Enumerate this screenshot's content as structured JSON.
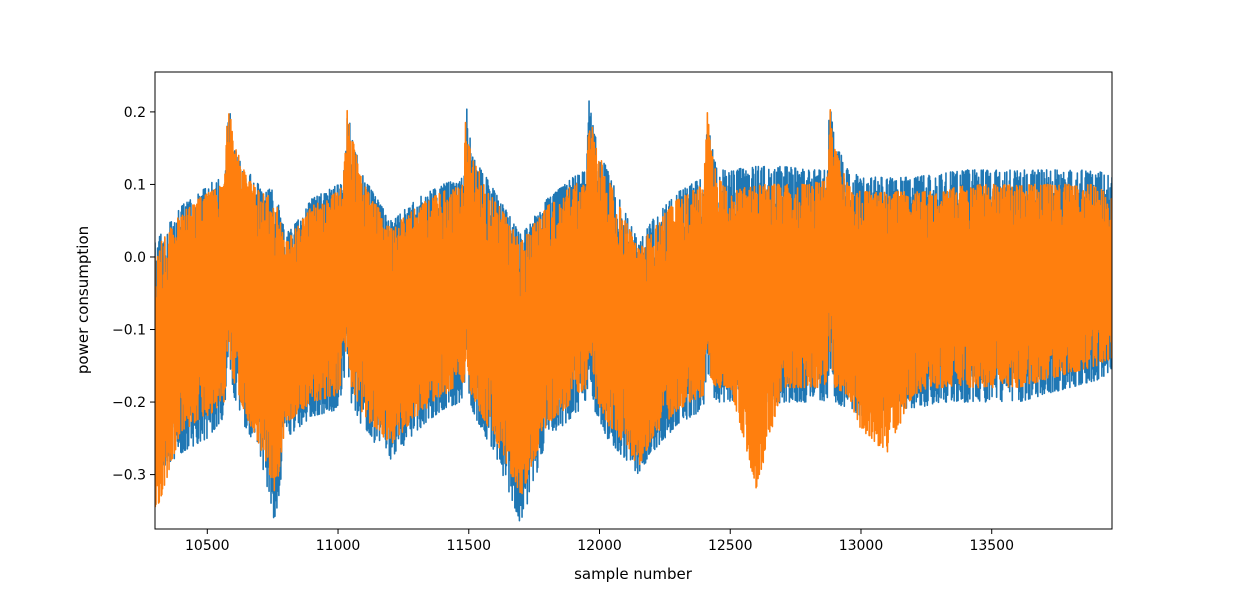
{
  "chart_data": {
    "type": "line",
    "title": "",
    "xlabel": "sample number",
    "ylabel": "power consumption",
    "xlim": [
      10300,
      13960
    ],
    "ylim": [
      -0.375,
      0.255
    ],
    "xticks": [
      10500,
      11000,
      11500,
      12000,
      12500,
      13000,
      13500
    ],
    "xtick_labels": [
      "10500",
      "11000",
      "11500",
      "12000",
      "12500",
      "13000",
      "13500"
    ],
    "yticks": [
      0.2,
      0.1,
      0.0,
      -0.1,
      -0.2,
      -0.3
    ],
    "ytick_labels": [
      "0.2",
      "0.1",
      "0.0",
      "−0.1",
      "−0.2",
      "−0.3"
    ],
    "grid": false,
    "legend": "none",
    "series": [
      {
        "color": "#1f77b4",
        "envelope": {
          "x": [
            10300,
            10400,
            10500,
            10565,
            10580,
            10600,
            10650,
            10700,
            10760,
            10800,
            10900,
            11000,
            11020,
            11035,
            11050,
            11100,
            11200,
            11300,
            11400,
            11480,
            11490,
            11500,
            11550,
            11600,
            11700,
            11800,
            11900,
            11950,
            11960,
            11980,
            12030,
            12100,
            12150,
            12200,
            12300,
            12400,
            12410,
            12425,
            12450,
            12500,
            12600,
            12700,
            12800,
            12870,
            12880,
            12900,
            12950,
            13000,
            13100,
            13200,
            13300,
            13400,
            13500,
            13600,
            13700,
            13800,
            13900,
            13960
          ],
          "upper": [
            0.02,
            0.07,
            0.1,
            0.11,
            0.22,
            0.16,
            0.12,
            0.1,
            0.09,
            0.03,
            0.08,
            0.1,
            0.1,
            0.215,
            0.17,
            0.11,
            0.05,
            0.08,
            0.1,
            0.11,
            0.215,
            0.17,
            0.12,
            0.09,
            0.03,
            0.08,
            0.11,
            0.12,
            0.215,
            0.17,
            0.12,
            0.06,
            0.02,
            0.05,
            0.09,
            0.11,
            0.215,
            0.16,
            0.12,
            0.12,
            0.125,
            0.125,
            0.12,
            0.12,
            0.213,
            0.16,
            0.12,
            0.11,
            0.11,
            0.11,
            0.115,
            0.12,
            0.12,
            0.12,
            0.12,
            0.12,
            0.12,
            0.11
          ],
          "lower": [
            -0.3,
            -0.27,
            -0.25,
            -0.22,
            -0.13,
            -0.19,
            -0.24,
            -0.27,
            -0.37,
            -0.25,
            -0.22,
            -0.21,
            -0.18,
            -0.14,
            -0.2,
            -0.24,
            -0.28,
            -0.24,
            -0.21,
            -0.2,
            -0.15,
            -0.2,
            -0.24,
            -0.27,
            -0.37,
            -0.25,
            -0.22,
            -0.2,
            -0.15,
            -0.21,
            -0.25,
            -0.28,
            -0.3,
            -0.27,
            -0.23,
            -0.21,
            -0.15,
            -0.19,
            -0.2,
            -0.2,
            -0.21,
            -0.2,
            -0.2,
            -0.2,
            -0.15,
            -0.2,
            -0.21,
            -0.22,
            -0.21,
            -0.21,
            -0.2,
            -0.2,
            -0.2,
            -0.2,
            -0.19,
            -0.18,
            -0.17,
            -0.16
          ]
        }
      },
      {
        "color": "#ff7f0e",
        "envelope": {
          "x": [
            10300,
            10400,
            10500,
            10565,
            10580,
            10600,
            10650,
            10700,
            10760,
            10800,
            10900,
            11000,
            11020,
            11035,
            11050,
            11100,
            11200,
            11300,
            11400,
            11480,
            11490,
            11500,
            11550,
            11600,
            11700,
            11800,
            11900,
            11950,
            11960,
            11980,
            12030,
            12100,
            12150,
            12200,
            12300,
            12400,
            12410,
            12425,
            12450,
            12500,
            12600,
            12700,
            12800,
            12870,
            12880,
            12900,
            12950,
            13000,
            13100,
            13200,
            13300,
            13400,
            13500,
            13600,
            13700,
            13800,
            13900,
            13960
          ],
          "upper": [
            0.01,
            0.06,
            0.09,
            0.1,
            0.22,
            0.16,
            0.11,
            0.09,
            0.08,
            0.02,
            0.07,
            0.09,
            0.1,
            0.215,
            0.17,
            0.1,
            0.04,
            0.07,
            0.09,
            0.1,
            0.215,
            0.16,
            0.11,
            0.08,
            0.02,
            0.07,
            0.1,
            0.11,
            0.215,
            0.16,
            0.11,
            0.05,
            0.01,
            0.04,
            0.08,
            0.1,
            0.215,
            0.15,
            0.11,
            0.09,
            0.1,
            0.1,
            0.1,
            0.11,
            0.213,
            0.15,
            0.1,
            0.09,
            0.09,
            0.09,
            0.09,
            0.1,
            0.1,
            0.1,
            0.1,
            0.1,
            0.1,
            0.08
          ],
          "lower": [
            -0.36,
            -0.24,
            -0.22,
            -0.2,
            -0.12,
            -0.17,
            -0.22,
            -0.26,
            -0.33,
            -0.23,
            -0.2,
            -0.19,
            -0.16,
            -0.12,
            -0.18,
            -0.22,
            -0.26,
            -0.22,
            -0.19,
            -0.18,
            -0.13,
            -0.18,
            -0.22,
            -0.25,
            -0.33,
            -0.23,
            -0.2,
            -0.18,
            -0.13,
            -0.19,
            -0.23,
            -0.26,
            -0.29,
            -0.25,
            -0.21,
            -0.19,
            -0.13,
            -0.17,
            -0.18,
            -0.18,
            -0.32,
            -0.18,
            -0.18,
            -0.18,
            -0.13,
            -0.18,
            -0.19,
            -0.24,
            -0.27,
            -0.19,
            -0.18,
            -0.18,
            -0.18,
            -0.18,
            -0.17,
            -0.16,
            -0.15,
            -0.14
          ]
        }
      }
    ]
  }
}
